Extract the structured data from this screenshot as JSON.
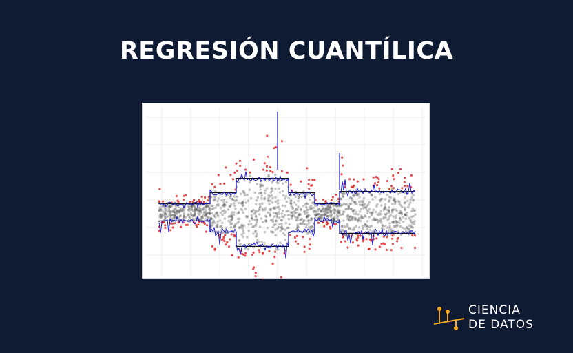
{
  "title": "REGRESIÓN CUANTÍLICA",
  "figure": {
    "point_color": "#555555",
    "outlier_color": "#e03030",
    "quantile_step_color": "#111111",
    "estimate_color": "#1a1acc"
  },
  "logo": {
    "line1": "CIENCIA",
    "line2": "DE DATOS",
    "accent_color": "#f5a623"
  }
}
